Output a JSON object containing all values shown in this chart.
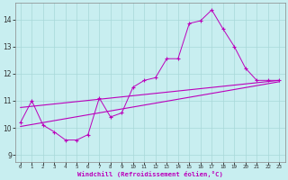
{
  "xlabel": "Windchill (Refroidissement éolien,°C)",
  "ylabel": "",
  "xlim": [
    -0.5,
    23.5
  ],
  "ylim": [
    8.75,
    14.6
  ],
  "yticks": [
    9,
    10,
    11,
    12,
    13,
    14
  ],
  "xticks": [
    0,
    1,
    2,
    3,
    4,
    5,
    6,
    7,
    8,
    9,
    10,
    11,
    12,
    13,
    14,
    15,
    16,
    17,
    18,
    19,
    20,
    21,
    22,
    23
  ],
  "bg_color": "#c8eef0",
  "line_color": "#bb00bb",
  "line1_x": [
    0,
    1,
    2,
    3,
    4,
    5,
    6,
    7,
    8,
    9,
    10,
    11,
    12,
    13,
    14,
    15,
    16,
    17,
    18,
    19,
    20,
    21,
    22,
    23
  ],
  "line1_y": [
    10.2,
    11.0,
    10.1,
    9.85,
    9.55,
    9.55,
    9.75,
    11.1,
    10.4,
    10.55,
    11.5,
    11.75,
    11.85,
    12.55,
    12.55,
    13.85,
    13.95,
    14.35,
    13.65,
    13.0,
    12.2,
    11.75,
    11.75,
    11.75
  ],
  "line2_x": [
    0,
    23
  ],
  "line2_y": [
    10.05,
    11.7
  ],
  "line3_x": [
    0,
    23
  ],
  "line3_y": [
    10.75,
    11.75
  ],
  "grid_color": "#a8d8d8",
  "spine_color": "#888888"
}
